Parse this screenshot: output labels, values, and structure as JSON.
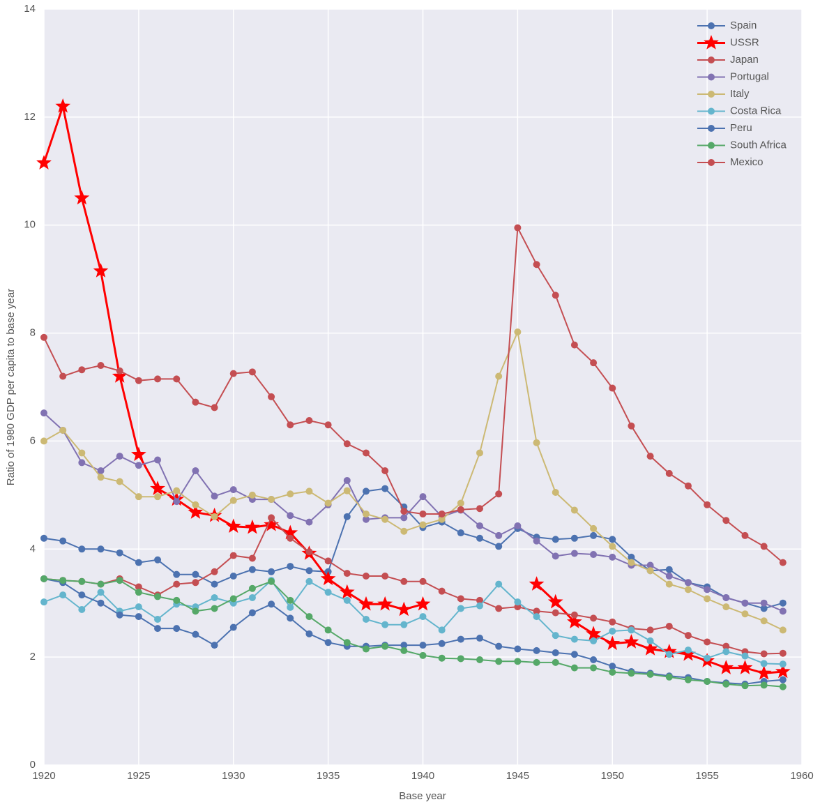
{
  "chart_data": {
    "type": "line",
    "xlabel": "Base year",
    "ylabel": "Ratio of 1980 GDP per capita to base year",
    "x": [
      1920,
      1921,
      1922,
      1923,
      1924,
      1925,
      1926,
      1927,
      1928,
      1929,
      1930,
      1931,
      1932,
      1933,
      1934,
      1935,
      1936,
      1937,
      1938,
      1939,
      1940,
      1941,
      1942,
      1943,
      1944,
      1945,
      1946,
      1947,
      1948,
      1949,
      1950,
      1951,
      1952,
      1953,
      1954,
      1955,
      1956,
      1957,
      1958,
      1959
    ],
    "xlim": [
      1920,
      1960
    ],
    "xticks": [
      1920,
      1925,
      1930,
      1935,
      1940,
      1945,
      1950,
      1955,
      1960
    ],
    "ylim": [
      0,
      14
    ],
    "yticks": [
      0,
      2,
      4,
      6,
      8,
      10,
      12,
      14
    ],
    "grid": true,
    "legend": "upper right",
    "series": [
      {
        "name": "Spain",
        "color": "#4c72b0",
        "marker": "o",
        "values": [
          4.2,
          4.15,
          4.0,
          4.0,
          3.93,
          3.75,
          3.8,
          3.53,
          3.53,
          3.35,
          3.5,
          3.62,
          3.58,
          3.68,
          3.6,
          3.58,
          4.6,
          5.07,
          5.12,
          4.78,
          4.4,
          4.5,
          4.3,
          4.2,
          4.05,
          4.38,
          4.22,
          4.18,
          4.2,
          4.25,
          4.18,
          3.85,
          3.6,
          3.62,
          3.38,
          3.3,
          3.1,
          3.0,
          2.9,
          3.0
        ]
      },
      {
        "name": "USSR",
        "color": "#ff0000",
        "marker": "*",
        "values": [
          11.15,
          12.2,
          10.5,
          9.15,
          7.2,
          5.75,
          5.12,
          4.92,
          4.68,
          4.62,
          4.42,
          4.4,
          4.45,
          4.3,
          3.92,
          3.45,
          3.2,
          2.98,
          2.98,
          2.88,
          2.98,
          null,
          null,
          null,
          null,
          null,
          3.35,
          3.02,
          2.65,
          2.43,
          2.25,
          2.28,
          2.15,
          2.1,
          2.05,
          1.93,
          1.8,
          1.8,
          1.7,
          1.73
        ]
      },
      {
        "name": "Japan",
        "color": "#c44e52",
        "marker": "o",
        "values": [
          3.45,
          3.42,
          3.4,
          3.35,
          3.45,
          3.3,
          3.15,
          3.35,
          3.38,
          3.58,
          3.88,
          3.83,
          4.58,
          4.2,
          3.95,
          3.78,
          3.55,
          3.5,
          3.5,
          3.4,
          3.4,
          3.22,
          3.08,
          3.05,
          2.9,
          2.93,
          2.85,
          2.82,
          2.78,
          2.72,
          2.65,
          2.53,
          2.5,
          2.57,
          2.4,
          2.28,
          2.2,
          2.1,
          2.06,
          2.07
        ]
      },
      {
        "name": "Portugal",
        "color": "#8172b2",
        "marker": "o",
        "values": [
          6.52,
          6.2,
          5.6,
          5.45,
          5.72,
          5.55,
          5.65,
          4.88,
          5.45,
          4.98,
          5.1,
          4.92,
          4.92,
          4.62,
          4.5,
          4.82,
          5.27,
          4.55,
          4.58,
          4.58,
          4.97,
          4.6,
          4.72,
          4.43,
          4.25,
          4.43,
          4.15,
          3.87,
          3.92,
          3.9,
          3.85,
          3.7,
          3.7,
          3.5,
          3.38,
          3.25,
          3.1,
          3.0,
          3.0,
          2.85
        ]
      },
      {
        "name": "Italy",
        "color": "#ccb974",
        "marker": "o",
        "values": [
          6.0,
          6.2,
          5.78,
          5.33,
          5.25,
          4.97,
          4.97,
          5.08,
          4.82,
          4.6,
          4.9,
          5.0,
          4.92,
          5.02,
          5.07,
          4.85,
          5.08,
          4.65,
          4.55,
          4.33,
          4.45,
          4.55,
          4.85,
          5.78,
          7.2,
          8.02,
          5.97,
          5.05,
          4.72,
          4.38,
          4.05,
          3.75,
          3.6,
          3.35,
          3.25,
          3.08,
          2.93,
          2.8,
          2.67,
          2.5
        ]
      },
      {
        "name": "Costa Rica",
        "color": "#64b5cd",
        "marker": "o",
        "values": [
          3.02,
          3.15,
          2.88,
          3.2,
          2.85,
          2.93,
          2.7,
          2.98,
          2.93,
          3.1,
          3.0,
          3.1,
          3.42,
          2.92,
          3.4,
          3.2,
          3.05,
          2.7,
          2.6,
          2.6,
          2.75,
          2.5,
          2.9,
          2.95,
          3.35,
          3.02,
          2.75,
          2.4,
          2.33,
          2.3,
          2.48,
          2.5,
          2.3,
          2.05,
          2.13,
          1.98,
          2.1,
          2.02,
          1.88,
          1.87
        ]
      },
      {
        "name": "Peru",
        "color": "#4c72b0",
        "marker": "o",
        "values": [
          3.45,
          3.38,
          3.15,
          3.0,
          2.78,
          2.75,
          2.53,
          2.53,
          2.42,
          2.22,
          2.55,
          2.82,
          2.98,
          2.72,
          2.43,
          2.27,
          2.2,
          2.2,
          2.22,
          2.22,
          2.22,
          2.25,
          2.33,
          2.35,
          2.2,
          2.15,
          2.12,
          2.08,
          2.05,
          1.95,
          1.83,
          1.73,
          1.7,
          1.65,
          1.62,
          1.55,
          1.52,
          1.5,
          1.55,
          1.58
        ]
      },
      {
        "name": "South Africa",
        "color": "#55a868",
        "marker": "o",
        "values": [
          3.45,
          3.42,
          3.4,
          3.35,
          3.42,
          3.2,
          3.12,
          3.05,
          2.85,
          2.9,
          3.08,
          3.27,
          3.4,
          3.05,
          2.75,
          2.5,
          2.27,
          2.15,
          2.2,
          2.12,
          2.03,
          1.98,
          1.97,
          1.95,
          1.92,
          1.92,
          1.9,
          1.9,
          1.8,
          1.8,
          1.72,
          1.7,
          1.68,
          1.63,
          1.58,
          1.55,
          1.5,
          1.47,
          1.48,
          1.45
        ]
      },
      {
        "name": "Mexico",
        "color": "#c44e52",
        "marker": "o",
        "values": [
          7.92,
          7.2,
          7.32,
          7.4,
          7.3,
          7.12,
          7.15,
          7.15,
          6.72,
          6.62,
          7.25,
          7.28,
          6.82,
          6.3,
          6.38,
          6.3,
          5.95,
          5.78,
          5.45,
          4.7,
          4.65,
          4.65,
          4.73,
          4.75,
          5.02,
          9.95,
          9.27,
          8.7,
          7.78,
          7.45,
          6.98,
          6.28,
          5.72,
          5.4,
          5.17,
          4.82,
          4.53,
          4.25,
          4.05,
          3.75
        ]
      }
    ]
  }
}
